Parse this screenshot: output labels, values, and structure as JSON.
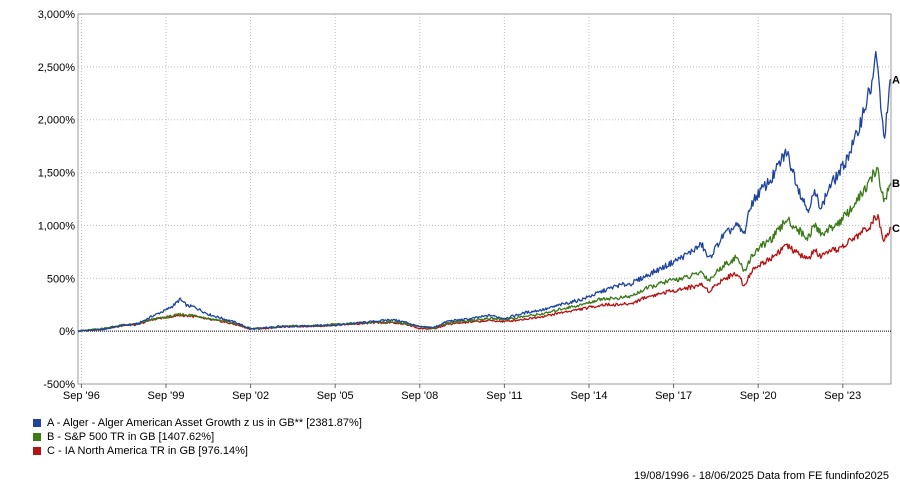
{
  "chart_data": {
    "type": "line",
    "x_ticks": [
      "Sep '96",
      "Sep '99",
      "Sep '02",
      "Sep '05",
      "Sep '08",
      "Sep '11",
      "Sep '14",
      "Sep '17",
      "Sep '20",
      "Sep '23"
    ],
    "x_tick_years": [
      1996.75,
      1999.75,
      2002.75,
      2005.75,
      2008.75,
      2011.75,
      2014.75,
      2017.75,
      2020.75,
      2023.75
    ],
    "x_range": [
      1996.63,
      2025.46
    ],
    "y_ticks": [
      "-500%",
      "0%",
      "500%",
      "1,000%",
      "1,500%",
      "2,000%",
      "2,500%",
      "3,000%"
    ],
    "y_tick_values": [
      -500,
      0,
      500,
      1000,
      1500,
      2000,
      2500,
      3000
    ],
    "ylim": [
      -500,
      3000
    ],
    "grid": true,
    "zero_line": true,
    "series": [
      {
        "key": "A",
        "name": "A - Alger - Alger American Asset Growth z us in GB** [2381.87%]",
        "color": "#1f44a0",
        "points": [
          [
            1996.63,
            0
          ],
          [
            1997.5,
            15
          ],
          [
            1998.25,
            55
          ],
          [
            1998.75,
            70
          ],
          [
            1999.25,
            140
          ],
          [
            1999.75,
            200
          ],
          [
            2000.0,
            240
          ],
          [
            2000.25,
            300
          ],
          [
            2000.5,
            240
          ],
          [
            2000.75,
            230
          ],
          [
            2001.25,
            160
          ],
          [
            2001.75,
            120
          ],
          [
            2002.25,
            80
          ],
          [
            2002.75,
            20
          ],
          [
            2003.25,
            30
          ],
          [
            2003.75,
            40
          ],
          [
            2004.5,
            45
          ],
          [
            2005.25,
            55
          ],
          [
            2005.75,
            55
          ],
          [
            2006.5,
            75
          ],
          [
            2007.25,
            95
          ],
          [
            2007.75,
            110
          ],
          [
            2008.25,
            85
          ],
          [
            2008.75,
            40
          ],
          [
            2009.25,
            35
          ],
          [
            2009.75,
            95
          ],
          [
            2010.5,
            115
          ],
          [
            2011.25,
            150
          ],
          [
            2011.75,
            120
          ],
          [
            2012.5,
            175
          ],
          [
            2013.25,
            210
          ],
          [
            2013.75,
            250
          ],
          [
            2014.5,
            300
          ],
          [
            2015.25,
            380
          ],
          [
            2015.75,
            430
          ],
          [
            2016.25,
            450
          ],
          [
            2016.75,
            520
          ],
          [
            2017.5,
            620
          ],
          [
            2018.25,
            730
          ],
          [
            2018.75,
            820
          ],
          [
            2019.0,
            680
          ],
          [
            2019.5,
            900
          ],
          [
            2020.0,
            1000
          ],
          [
            2020.25,
            920
          ],
          [
            2020.5,
            1200
          ],
          [
            2020.75,
            1300
          ],
          [
            2021.25,
            1450
          ],
          [
            2021.5,
            1580
          ],
          [
            2021.75,
            1700
          ],
          [
            2022.0,
            1500
          ],
          [
            2022.25,
            1300
          ],
          [
            2022.5,
            1150
          ],
          [
            2022.75,
            1300
          ],
          [
            2023.0,
            1170
          ],
          [
            2023.25,
            1350
          ],
          [
            2023.75,
            1550
          ],
          [
            2024.25,
            1850
          ],
          [
            2024.5,
            2100
          ],
          [
            2024.75,
            2300
          ],
          [
            2024.92,
            2580
          ],
          [
            2025.0,
            2450
          ],
          [
            2025.2,
            1820
          ],
          [
            2025.3,
            2000
          ],
          [
            2025.46,
            2380
          ]
        ]
      },
      {
        "key": "B",
        "name": "B - S&P 500 TR in GB [1407.62%]",
        "color": "#3a7a17",
        "points": [
          [
            1996.63,
            0
          ],
          [
            1997.5,
            25
          ],
          [
            1998.25,
            60
          ],
          [
            1998.75,
            65
          ],
          [
            1999.25,
            110
          ],
          [
            1999.75,
            130
          ],
          [
            2000.25,
            160
          ],
          [
            2000.75,
            150
          ],
          [
            2001.25,
            120
          ],
          [
            2001.75,
            100
          ],
          [
            2002.25,
            70
          ],
          [
            2002.75,
            25
          ],
          [
            2003.25,
            30
          ],
          [
            2003.75,
            45
          ],
          [
            2004.5,
            50
          ],
          [
            2005.25,
            55
          ],
          [
            2005.75,
            65
          ],
          [
            2006.5,
            75
          ],
          [
            2007.25,
            85
          ],
          [
            2007.75,
            90
          ],
          [
            2008.25,
            75
          ],
          [
            2008.75,
            40
          ],
          [
            2009.25,
            30
          ],
          [
            2009.75,
            80
          ],
          [
            2010.5,
            100
          ],
          [
            2011.25,
            120
          ],
          [
            2011.75,
            110
          ],
          [
            2012.5,
            140
          ],
          [
            2013.25,
            170
          ],
          [
            2013.75,
            210
          ],
          [
            2014.5,
            250
          ],
          [
            2015.25,
            310
          ],
          [
            2015.75,
            310
          ],
          [
            2016.25,
            330
          ],
          [
            2016.75,
            400
          ],
          [
            2017.5,
            470
          ],
          [
            2018.25,
            510
          ],
          [
            2018.75,
            560
          ],
          [
            2019.0,
            480
          ],
          [
            2019.5,
            620
          ],
          [
            2020.0,
            700
          ],
          [
            2020.25,
            560
          ],
          [
            2020.5,
            700
          ],
          [
            2020.75,
            780
          ],
          [
            2021.25,
            880
          ],
          [
            2021.5,
            960
          ],
          [
            2021.75,
            1060
          ],
          [
            2022.0,
            1000
          ],
          [
            2022.5,
            880
          ],
          [
            2022.75,
            1000
          ],
          [
            2023.0,
            920
          ],
          [
            2023.25,
            960
          ],
          [
            2023.75,
            1060
          ],
          [
            2024.25,
            1230
          ],
          [
            2024.5,
            1330
          ],
          [
            2024.75,
            1420
          ],
          [
            2024.92,
            1540
          ],
          [
            2025.0,
            1500
          ],
          [
            2025.2,
            1230
          ],
          [
            2025.3,
            1300
          ],
          [
            2025.46,
            1400
          ]
        ]
      },
      {
        "key": "C",
        "name": "C - IA North America TR in GB [976.14%]",
        "color": "#b51313",
        "points": [
          [
            1996.63,
            0
          ],
          [
            1997.5,
            20
          ],
          [
            1998.25,
            55
          ],
          [
            1998.75,
            60
          ],
          [
            1999.25,
            110
          ],
          [
            1999.75,
            130
          ],
          [
            2000.25,
            150
          ],
          [
            2000.75,
            140
          ],
          [
            2001.25,
            110
          ],
          [
            2001.75,
            90
          ],
          [
            2002.25,
            60
          ],
          [
            2002.75,
            20
          ],
          [
            2003.25,
            25
          ],
          [
            2003.75,
            40
          ],
          [
            2004.5,
            45
          ],
          [
            2005.25,
            50
          ],
          [
            2005.75,
            60
          ],
          [
            2006.5,
            70
          ],
          [
            2007.25,
            80
          ],
          [
            2007.75,
            80
          ],
          [
            2008.25,
            65
          ],
          [
            2008.75,
            25
          ],
          [
            2009.25,
            20
          ],
          [
            2009.75,
            65
          ],
          [
            2010.5,
            85
          ],
          [
            2011.25,
            100
          ],
          [
            2011.75,
            90
          ],
          [
            2012.5,
            115
          ],
          [
            2013.25,
            145
          ],
          [
            2013.75,
            175
          ],
          [
            2014.5,
            210
          ],
          [
            2015.25,
            250
          ],
          [
            2015.75,
            250
          ],
          [
            2016.25,
            260
          ],
          [
            2016.75,
            320
          ],
          [
            2017.5,
            370
          ],
          [
            2018.25,
            410
          ],
          [
            2018.75,
            440
          ],
          [
            2019.0,
            380
          ],
          [
            2019.5,
            490
          ],
          [
            2020.0,
            550
          ],
          [
            2020.25,
            430
          ],
          [
            2020.5,
            560
          ],
          [
            2020.75,
            620
          ],
          [
            2021.25,
            700
          ],
          [
            2021.5,
            760
          ],
          [
            2021.75,
            810
          ],
          [
            2022.0,
            760
          ],
          [
            2022.5,
            680
          ],
          [
            2022.75,
            760
          ],
          [
            2023.0,
            700
          ],
          [
            2023.25,
            740
          ],
          [
            2023.75,
            800
          ],
          [
            2024.25,
            900
          ],
          [
            2024.5,
            950
          ],
          [
            2024.75,
            1010
          ],
          [
            2024.92,
            1080
          ],
          [
            2025.0,
            1060
          ],
          [
            2025.2,
            880
          ],
          [
            2025.3,
            920
          ],
          [
            2025.46,
            976
          ]
        ]
      }
    ]
  },
  "footer_text": "19/08/1996 - 18/06/2025 Data from FE fundinfo2025"
}
